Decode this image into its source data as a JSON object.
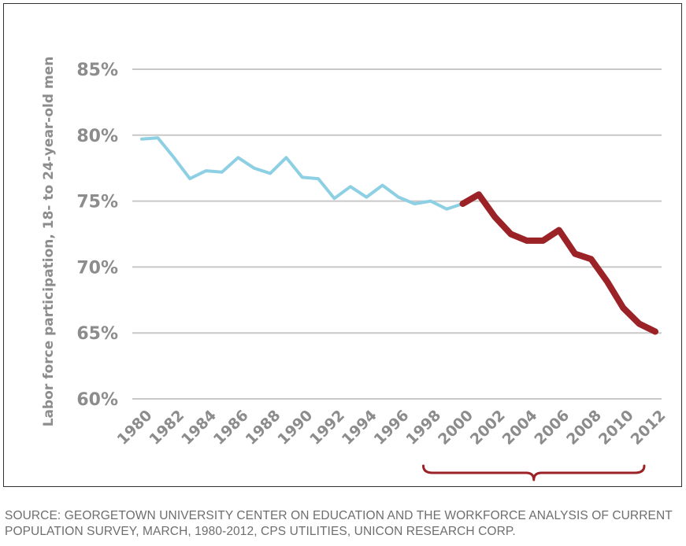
{
  "chart_data": {
    "type": "line",
    "title": "",
    "xlabel": "",
    "ylabel": "Labor force participation, 18- to 24-year-old men",
    "ylim": [
      60,
      85
    ],
    "yticks": [
      "85%",
      "80%",
      "75%",
      "70%",
      "65%",
      "60%"
    ],
    "ytick_values": [
      85,
      80,
      75,
      70,
      65,
      60
    ],
    "xlim": [
      1980,
      2012
    ],
    "xticks": [
      "1980",
      "1982",
      "1984",
      "1986",
      "1988",
      "1990",
      "1992",
      "1994",
      "1996",
      "1998",
      "2000",
      "2002",
      "2004",
      "2006",
      "2008",
      "2010",
      "2012"
    ],
    "xtick_values": [
      1980,
      1982,
      1984,
      1986,
      1988,
      1990,
      1992,
      1994,
      1996,
      1998,
      2000,
      2002,
      2004,
      2006,
      2008,
      2010,
      2012
    ],
    "grid": true,
    "legend": "none",
    "series": [
      {
        "color": "#8dcfe3",
        "x": [
          1980,
          1981,
          1982,
          1983,
          1984,
          1985,
          1986,
          1987,
          1988,
          1989,
          1990,
          1991,
          1992,
          1993,
          1994,
          1995,
          1996,
          1997,
          1998,
          1999,
          2000
        ],
        "values": [
          79.7,
          79.8,
          78.3,
          76.7,
          77.3,
          77.2,
          78.3,
          77.5,
          77.1,
          78.3,
          76.8,
          76.7,
          75.2,
          76.1,
          75.3,
          76.2,
          75.3,
          74.8,
          75.0,
          74.4,
          74.8
        ]
      },
      {
        "color": "#9b2226",
        "x": [
          2000,
          2001,
          2002,
          2003,
          2004,
          2005,
          2006,
          2007,
          2008,
          2009,
          2010,
          2011,
          2012
        ],
        "values": [
          74.8,
          75.5,
          73.8,
          72.5,
          72.0,
          72.0,
          72.8,
          71.0,
          70.6,
          68.9,
          66.9,
          65.7,
          65.1
        ]
      }
    ],
    "annotations": [
      {
        "type": "brace",
        "color": "#9b2226",
        "from": 2000,
        "to": 2012
      }
    ]
  },
  "source_note": "SOURCE: GEORGETOWN UNIVERSITY CENTER ON EDUCATION AND THE WORKFORCE ANALYSIS OF CURRENT POPULATION SURVEY, MARCH, 1980-2012, CPS UTILITIES, UNICON RESEARCH CORP."
}
